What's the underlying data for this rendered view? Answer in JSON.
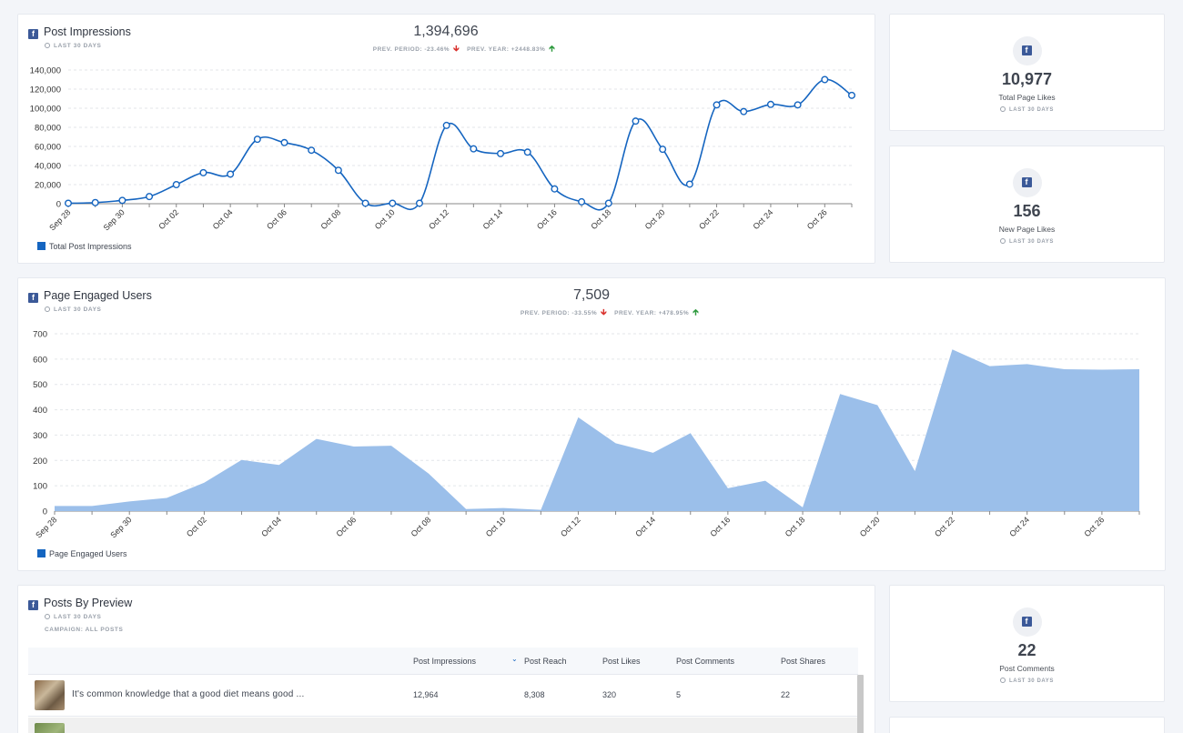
{
  "impressions": {
    "title": "Post Impressions",
    "period": "LAST 30 DAYS",
    "total": "1,394,696",
    "prev_period": "PREV. PERIOD: -23.46%",
    "prev_year": "PREV. YEAR: +2448.83%",
    "legend": "Total Post Impressions"
  },
  "engaged": {
    "title": "Page Engaged Users",
    "period": "LAST 30 DAYS",
    "total": "7,509",
    "prev_period": "PREV. PERIOD: -33.55%",
    "prev_year": "PREV. YEAR: +478.95%",
    "legend": "Page Engaged Users"
  },
  "stats": [
    {
      "value": "10,977",
      "label": "Total Page Likes",
      "period": "LAST 30 DAYS"
    },
    {
      "value": "156",
      "label": "New Page Likes",
      "period": "LAST 30 DAYS"
    },
    {
      "value": "22",
      "label": "Post Comments",
      "period": "LAST 30 DAYS"
    }
  ],
  "posts": {
    "title": "Posts By Preview",
    "period": "LAST 30 DAYS",
    "campaign": "CAMPAIGN: ALL POSTS",
    "columns": [
      "Post Impressions",
      "Post Reach",
      "Post Likes",
      "Post Comments",
      "Post Shares"
    ],
    "rows": [
      {
        "text": "It's common knowledge that a good diet means good ...",
        "impressions": "12,964",
        "reach": "8,308",
        "likes": "320",
        "comments": "5",
        "shares": "22"
      },
      {
        "text": "",
        "impressions": "",
        "reach": "",
        "likes": "",
        "comments": "",
        "shares": ""
      }
    ]
  },
  "colors": {
    "line": "#1565c0",
    "area": "#9bbfea",
    "fb": "#3b5998",
    "down": "#d9302c",
    "up": "#2e9a3e"
  },
  "chart_data": [
    {
      "type": "line",
      "title": "Post Impressions",
      "x": [
        "Sep 28",
        "Sep 29",
        "Sep 30",
        "Oct 01",
        "Oct 02",
        "Oct 03",
        "Oct 04",
        "Oct 05",
        "Oct 06",
        "Oct 07",
        "Oct 08",
        "Oct 09",
        "Oct 10",
        "Oct 11",
        "Oct 12",
        "Oct 13",
        "Oct 14",
        "Oct 15",
        "Oct 16",
        "Oct 17",
        "Oct 18",
        "Oct 19",
        "Oct 20",
        "Oct 21",
        "Oct 22",
        "Oct 23",
        "Oct 24",
        "Oct 25",
        "Oct 26",
        "Oct 27"
      ],
      "x_ticks": [
        "Sep 28",
        "Sep 30",
        "Oct 02",
        "Oct 04",
        "Oct 06",
        "Oct 08",
        "Oct 10",
        "Oct 12",
        "Oct 14",
        "Oct 16",
        "Oct 18",
        "Oct 20",
        "Oct 22",
        "Oct 24",
        "Oct 26"
      ],
      "series": [
        {
          "name": "Total Post Impressions",
          "values": [
            500,
            1200,
            3500,
            7500,
            20000,
            32500,
            31000,
            67500,
            64000,
            56000,
            35000,
            500,
            500,
            500,
            82000,
            57500,
            52500,
            54000,
            15500,
            2000,
            500,
            86500,
            57000,
            20500,
            103500,
            96500,
            104000,
            103500,
            130000,
            113500
          ]
        }
      ],
      "ylim": [
        0,
        140000
      ],
      "y_ticks": [
        "0",
        "20,000",
        "40,000",
        "60,000",
        "80,000",
        "100,000",
        "120,000",
        "140,000"
      ],
      "grid": true,
      "legend": "bottom-left"
    },
    {
      "type": "area",
      "title": "Page Engaged Users",
      "x": [
        "Sep 28",
        "Sep 29",
        "Sep 30",
        "Oct 01",
        "Oct 02",
        "Oct 03",
        "Oct 04",
        "Oct 05",
        "Oct 06",
        "Oct 07",
        "Oct 08",
        "Oct 09",
        "Oct 10",
        "Oct 11",
        "Oct 12",
        "Oct 13",
        "Oct 14",
        "Oct 15",
        "Oct 16",
        "Oct 17",
        "Oct 18",
        "Oct 19",
        "Oct 20",
        "Oct 21",
        "Oct 22",
        "Oct 23",
        "Oct 24",
        "Oct 25",
        "Oct 26",
        "Oct 27"
      ],
      "x_ticks": [
        "Sep 28",
        "Sep 30",
        "Oct 02",
        "Oct 04",
        "Oct 06",
        "Oct 08",
        "Oct 10",
        "Oct 12",
        "Oct 14",
        "Oct 16",
        "Oct 18",
        "Oct 20",
        "Oct 22",
        "Oct 24",
        "Oct 26"
      ],
      "series": [
        {
          "name": "Page Engaged Users",
          "values": [
            20,
            20,
            38,
            52,
            112,
            202,
            182,
            285,
            255,
            258,
            148,
            8,
            12,
            5,
            370,
            268,
            230,
            308,
            90,
            120,
            15,
            462,
            418,
            158,
            638,
            572,
            580,
            560,
            558,
            560
          ]
        }
      ],
      "ylim": [
        0,
        700
      ],
      "y_ticks": [
        "0",
        "100",
        "200",
        "300",
        "400",
        "500",
        "600",
        "700"
      ],
      "grid": true,
      "legend": "bottom-left"
    }
  ]
}
